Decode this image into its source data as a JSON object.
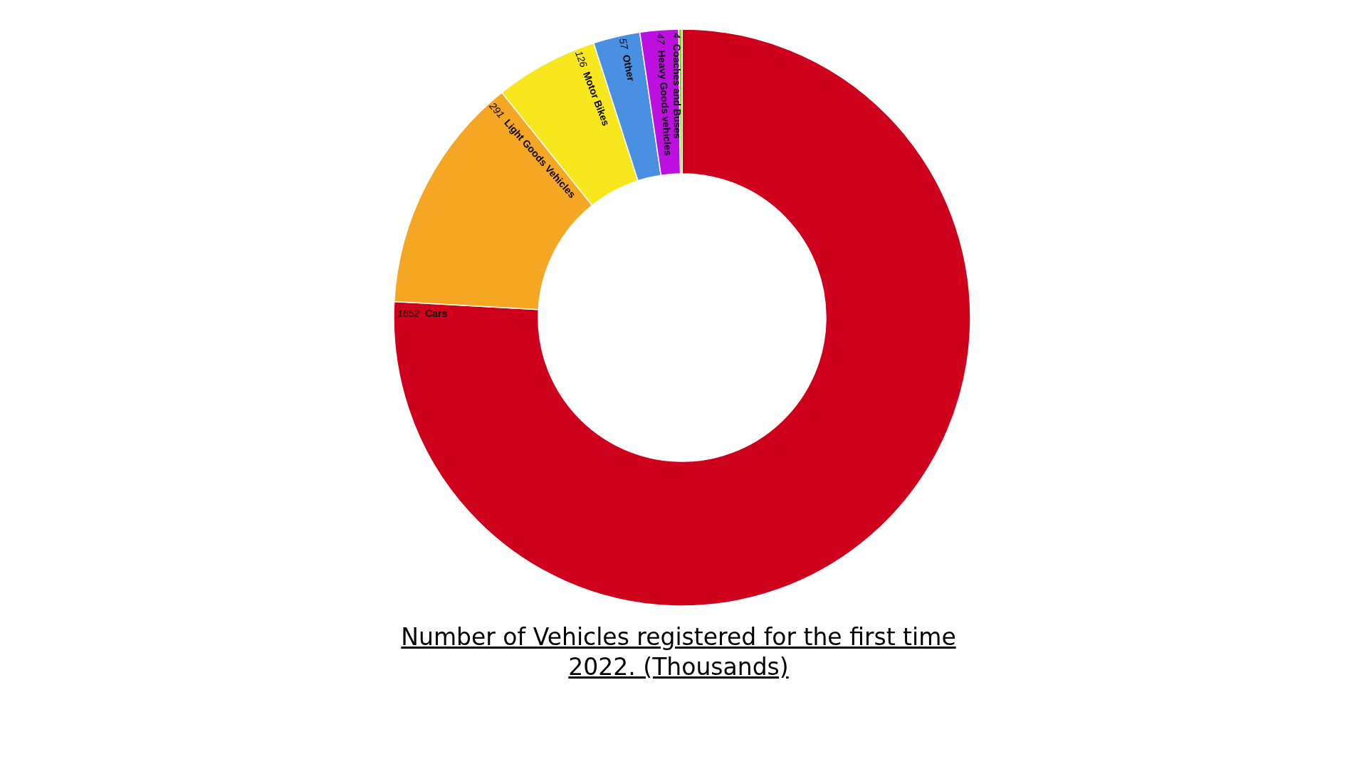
{
  "chart_data": {
    "type": "donut",
    "title": "Number of Vehicles registered for the first time 2022. (Thousands)",
    "categories": [
      "Cars",
      "Light Goods Vehicles",
      "Motor Bikes",
      "Other",
      "Heavy Goods vehicles",
      "Coaches and Buses"
    ],
    "values": [
      1652,
      291,
      126,
      57,
      47,
      4
    ],
    "colors": [
      "#cf001c",
      "#f5a623",
      "#f8e71c",
      "#4a90e2",
      "#bd10e0",
      "#7ed321"
    ],
    "data_labels": true
  }
}
